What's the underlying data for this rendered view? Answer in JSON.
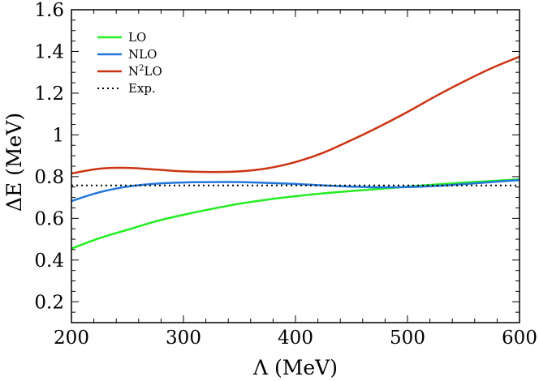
{
  "chart_data": {
    "type": "line",
    "title": "",
    "xlabel": "Λ (MeV)",
    "ylabel": "ΔE (MeV)",
    "xlim": [
      200,
      600
    ],
    "ylim": [
      0.1,
      1.6
    ],
    "x_ticks": [
      200,
      300,
      400,
      500,
      600
    ],
    "x_tick_labels": [
      "200",
      "300",
      "400",
      "500",
      "600"
    ],
    "y_ticks": [
      0.2,
      0.4,
      0.6,
      0.8,
      1.0,
      1.2,
      1.4,
      1.6
    ],
    "y_tick_labels": [
      "0.2",
      "0.4",
      "0.6",
      "0.8",
      "1",
      "1.2",
      "1.4",
      "1.6"
    ],
    "grid": false,
    "legend_position": "top-left",
    "series": [
      {
        "name": "LO",
        "label_main": "LO",
        "label_sup": "",
        "label_rest": "",
        "color": "#22ee22",
        "style": "solid",
        "x": [
          200,
          225,
          250,
          275,
          300,
          325,
          350,
          375,
          400,
          425,
          450,
          475,
          500,
          525,
          550,
          575,
          600
        ],
        "y": [
          0.455,
          0.505,
          0.545,
          0.585,
          0.617,
          0.645,
          0.67,
          0.69,
          0.706,
          0.72,
          0.731,
          0.741,
          0.752,
          0.762,
          0.771,
          0.779,
          0.787
        ]
      },
      {
        "name": "NLO",
        "label_main": "NLO",
        "label_sup": "",
        "label_rest": "",
        "color": "#2277dd",
        "style": "solid",
        "x": [
          200,
          225,
          250,
          275,
          300,
          325,
          350,
          375,
          400,
          425,
          450,
          475,
          500,
          525,
          550,
          575,
          600
        ],
        "y": [
          0.683,
          0.725,
          0.752,
          0.766,
          0.772,
          0.774,
          0.774,
          0.77,
          0.765,
          0.758,
          0.752,
          0.749,
          0.75,
          0.755,
          0.764,
          0.774,
          0.783
        ]
      },
      {
        "name": "N2LO",
        "label_main": "N",
        "label_sup": "2",
        "label_rest": "LO",
        "color": "#cc3311",
        "style": "solid",
        "x": [
          200,
          225,
          250,
          275,
          300,
          325,
          350,
          375,
          400,
          425,
          450,
          475,
          500,
          525,
          550,
          575,
          600
        ],
        "y": [
          0.815,
          0.838,
          0.842,
          0.834,
          0.825,
          0.822,
          0.825,
          0.84,
          0.87,
          0.915,
          0.975,
          1.04,
          1.11,
          1.185,
          1.255,
          1.32,
          1.375
        ]
      },
      {
        "name": "Exp.",
        "label_main": "Exp.",
        "label_sup": "",
        "label_rest": "",
        "color": "#000000",
        "style": "dotted",
        "x": [
          200,
          600
        ],
        "y": [
          0.758,
          0.758
        ]
      }
    ]
  }
}
